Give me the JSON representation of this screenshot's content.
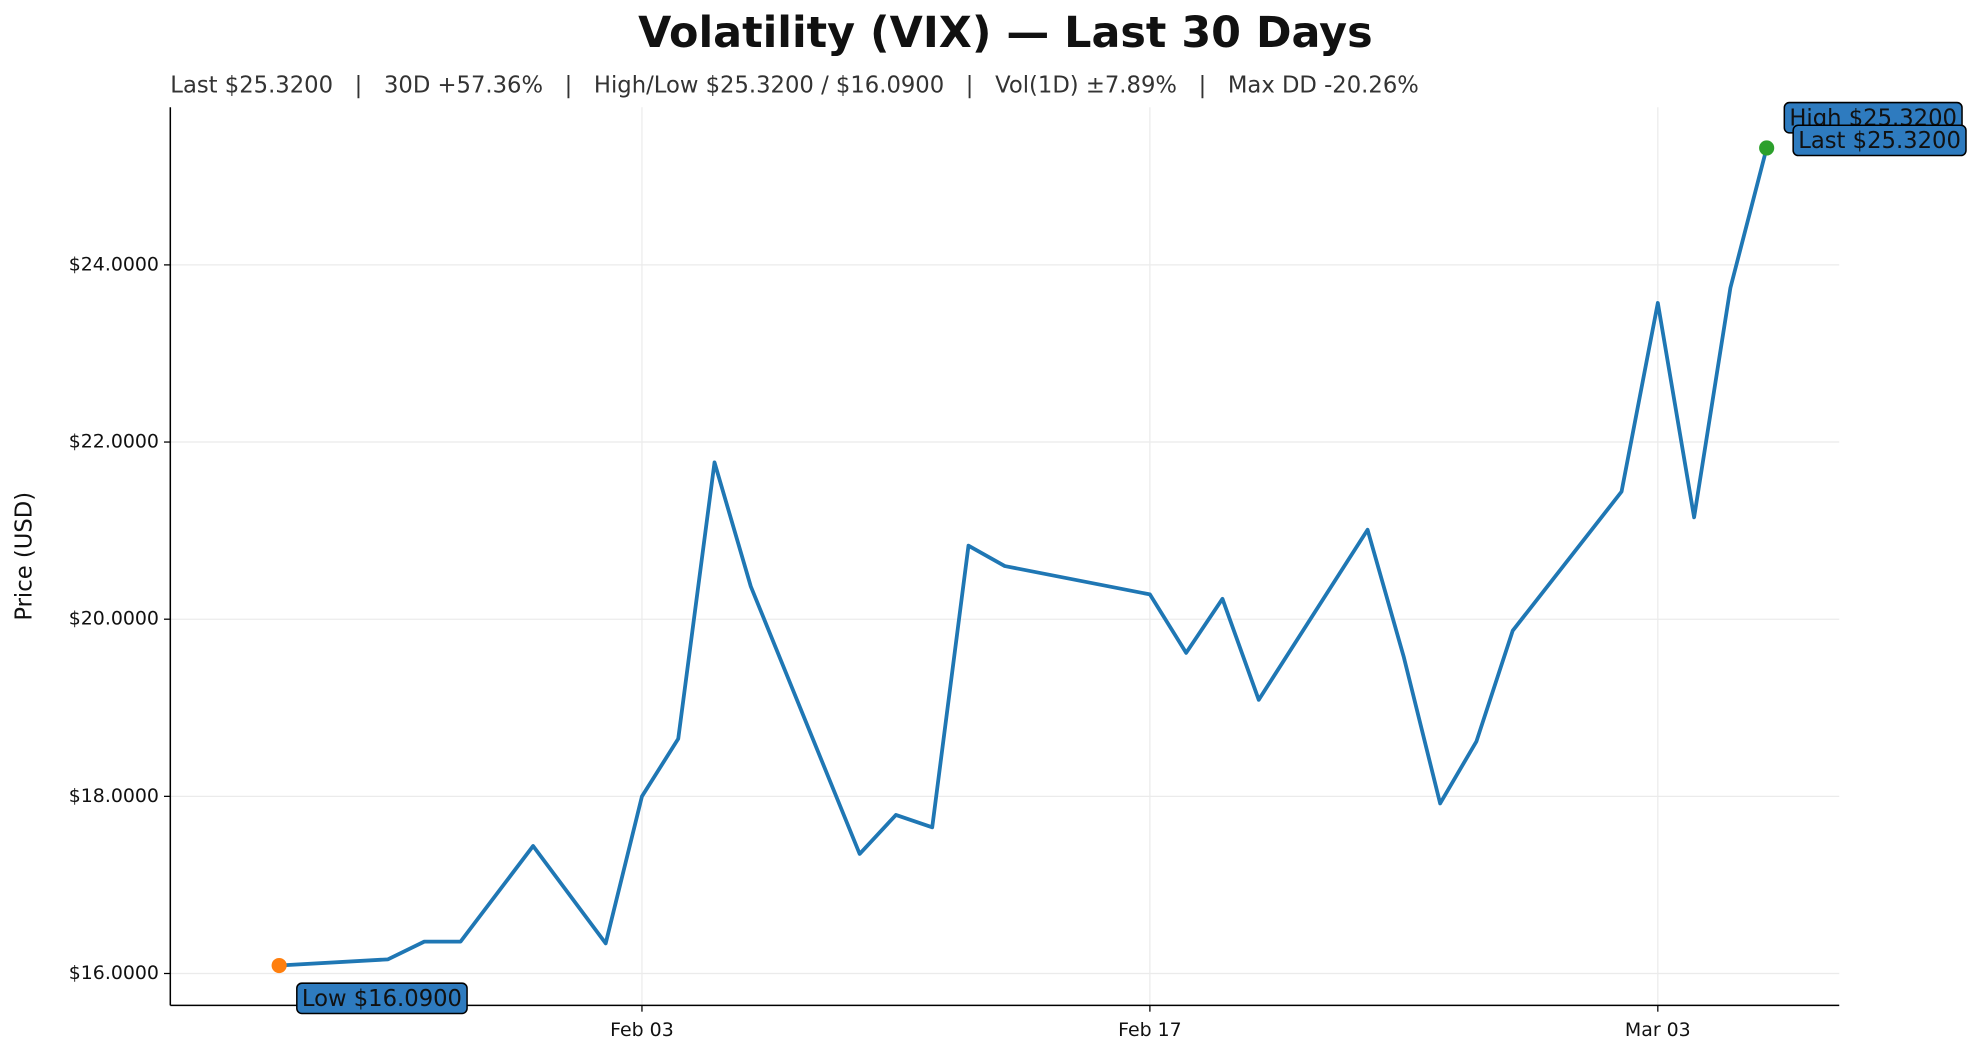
{
  "chart_data": {
    "type": "line",
    "title": "Volatility (VIX) — Last 30 Days",
    "subtitle": "Last $25.3200   |   30D +57.36%   |   High/Low $25.3200 / $16.0900   |   Vol(1D) ±7.89%   |   Max DD -20.26%",
    "y_label": "Price (USD)",
    "x": [
      "Jan 24",
      "Jan 27",
      "Jan 28",
      "Jan 29",
      "Jan 31",
      "Feb 02",
      "Feb 03",
      "Feb 04",
      "Feb 05",
      "Feb 06",
      "Feb 09",
      "Feb 10",
      "Feb 11",
      "Feb 12",
      "Feb 13",
      "Feb 17",
      "Feb 18",
      "Feb 19",
      "Feb 20",
      "Feb 23",
      "Feb 24",
      "Feb 25",
      "Feb 26",
      "Feb 27",
      "Mar 02",
      "Mar 03",
      "Mar 04",
      "Mar 05",
      "Mar 06"
    ],
    "series": [
      {
        "name": "VIX",
        "color": "#1f77b4",
        "values": [
          16.09,
          16.16,
          16.36,
          16.36,
          17.44,
          16.34,
          18.0,
          18.65,
          21.77,
          20.37,
          17.35,
          17.79,
          17.65,
          20.83,
          20.6,
          20.28,
          19.62,
          20.23,
          19.09,
          21.01,
          19.57,
          17.92,
          18.62,
          19.87,
          21.44,
          23.57,
          21.15,
          23.74,
          25.32
        ]
      }
    ],
    "xlim": [
      "Jan 21",
      "Mar 08"
    ],
    "xticks": [
      "Feb 03",
      "Feb 17",
      "Mar 03"
    ],
    "ylim": [
      15.64,
      25.78
    ],
    "yticks": [
      {
        "value": 16,
        "label": "$16.0000"
      },
      {
        "value": 18,
        "label": "$18.0000"
      },
      {
        "value": 20,
        "label": "$20.0000"
      },
      {
        "value": 22,
        "label": "$22.0000"
      },
      {
        "value": 24,
        "label": "$24.0000"
      }
    ],
    "grid": true,
    "annotations": {
      "high": "High $25.3200",
      "last": "Last $25.3200",
      "low": "Low $16.0900"
    },
    "low_color": "#ff7f0e",
    "last_color": "#2ca02c",
    "annotation_color": "#2e7bbf"
  }
}
